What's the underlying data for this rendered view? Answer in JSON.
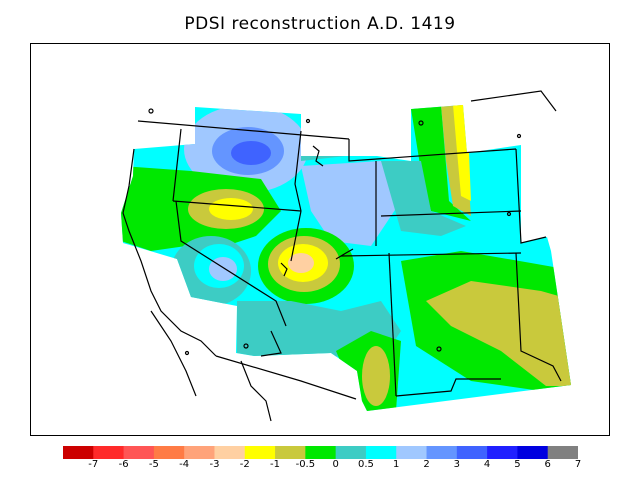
{
  "title": "PDSI reconstruction A.D. 1419",
  "legend": {
    "labels": [
      "-7",
      "-6",
      "-5",
      "-4",
      "-3",
      "-2",
      "-1",
      "-0.5",
      "0",
      "0.5",
      "1",
      "2",
      "3",
      "4",
      "5",
      "6",
      "7"
    ],
    "colors": [
      "#cc0000",
      "#ff2a2a",
      "#ff5555",
      "#ff7b45",
      "#ffa37a",
      "#ffd0a2",
      "#ffff00",
      "#c9c93c",
      "#00e800",
      "#3dccc4",
      "#00ffff",
      "#a0c8ff",
      "#6495ff",
      "#3f63ff",
      "#2020ff",
      "#0000e0",
      "#808080"
    ]
  },
  "map_colors": {
    "background": "#ffffff",
    "outline": "#000000"
  }
}
